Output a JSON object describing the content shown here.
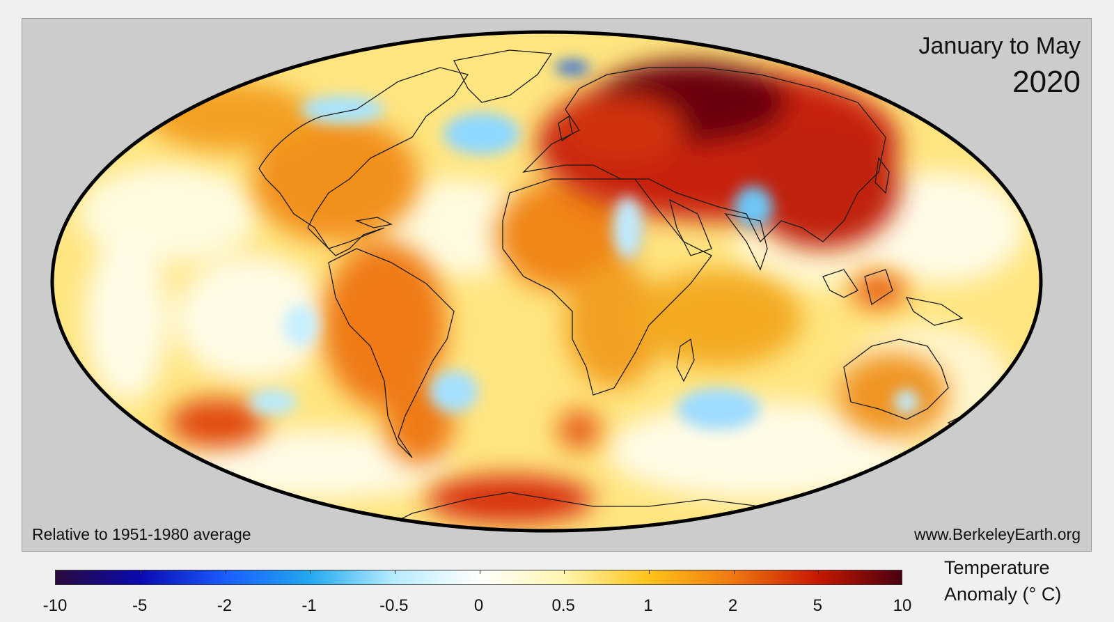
{
  "map": {
    "title": "January to May",
    "year": "2020",
    "note_left": "Relative to 1951-1980 average",
    "note_right": "www.BerkeleyEarth.org",
    "projection": "Mollweide",
    "region": "global"
  },
  "legend": {
    "title_line1": "Temperature",
    "title_line2": "Anomaly (° C)",
    "ticks": [
      "-10",
      "-5",
      "-2",
      "-1",
      "-0.5",
      "0",
      "0.5",
      "1",
      "2",
      "5",
      "10"
    ],
    "colors": [
      "#2a0a3d",
      "#0a0ab0",
      "#1a5cff",
      "#22a8f0",
      "#b8ecff",
      "#ffffff",
      "#fff6b0",
      "#ffc41a",
      "#f07810",
      "#c81800",
      "#4a0010"
    ]
  },
  "colors": {
    "panel_background": "#cccccc",
    "page_background": "#f0f0f0",
    "ocean_base": "#ffe27a",
    "strong_warm": "#8b0a0a",
    "cool": "#9fe0ff"
  }
}
